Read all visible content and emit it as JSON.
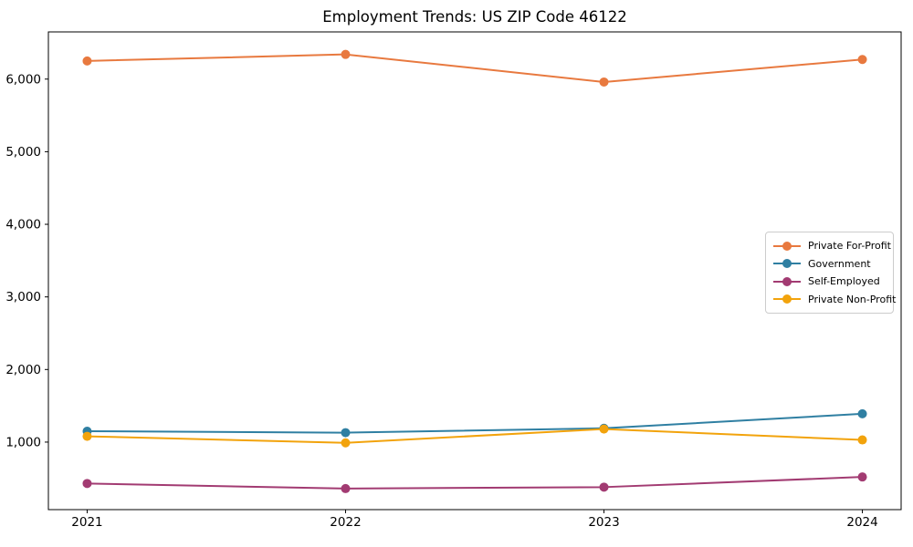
{
  "chart_data": {
    "type": "line",
    "title": "Employment Trends: US ZIP Code 46122",
    "xlabel": "",
    "ylabel": "",
    "x": [
      2021,
      2022,
      2023,
      2024
    ],
    "x_labels": [
      "2021",
      "2022",
      "2023",
      "2024"
    ],
    "xlim": [
      2020.85,
      2024.15
    ],
    "ylim": [
      70,
      6650
    ],
    "yticks": [
      {
        "value": 1000,
        "label": "1,000"
      },
      {
        "value": 2000,
        "label": "2,000"
      },
      {
        "value": 3000,
        "label": "3,000"
      },
      {
        "value": 4000,
        "label": "4,000"
      },
      {
        "value": 5000,
        "label": "5,000"
      },
      {
        "value": 6000,
        "label": "6,000"
      }
    ],
    "grid": false,
    "legend_position": "center-right",
    "series": [
      {
        "name": "Private For-Profit",
        "color": "#E8793F",
        "values": [
          6250,
          6340,
          5960,
          6270
        ]
      },
      {
        "name": "Government",
        "color": "#2F7FA2",
        "values": [
          1150,
          1130,
          1190,
          1390
        ]
      },
      {
        "name": "Self-Employed",
        "color": "#A23B72",
        "values": [
          430,
          360,
          380,
          520
        ]
      },
      {
        "name": "Private Non-Profit",
        "color": "#F2A30C",
        "values": [
          1080,
          990,
          1180,
          1030
        ]
      }
    ]
  }
}
